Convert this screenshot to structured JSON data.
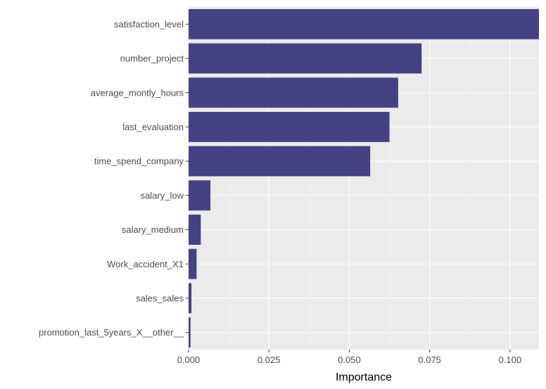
{
  "chart_data": {
    "type": "bar",
    "orientation": "horizontal",
    "title": "",
    "xlabel": "Importance",
    "ylabel": "",
    "categories": [
      "satisfaction_level",
      "number_project",
      "average_montly_hours",
      "last_evaluation",
      "time_spend_company",
      "salary_low",
      "salary_medium",
      "Work_accident_X1",
      "sales_sales",
      "promotion_last_5years_X__other__"
    ],
    "values": [
      0.1095,
      0.0725,
      0.0652,
      0.0625,
      0.0565,
      0.0068,
      0.0038,
      0.0025,
      0.0009,
      0.0006
    ],
    "xlim": [
      0,
      0.109
    ],
    "x_ticks": [
      0.0,
      0.025,
      0.05,
      0.075,
      0.1
    ],
    "x_tick_labels": [
      "0.000",
      "0.025",
      "0.050",
      "0.075",
      "0.100"
    ],
    "grid": true,
    "legend": "none",
    "colors": {
      "bar": "#3f3c7f",
      "panel": "#ebebeb",
      "grid_major": "#ffffff",
      "grid_minor": "#f5f5f5",
      "tick_text": "#4d4d4d"
    }
  }
}
